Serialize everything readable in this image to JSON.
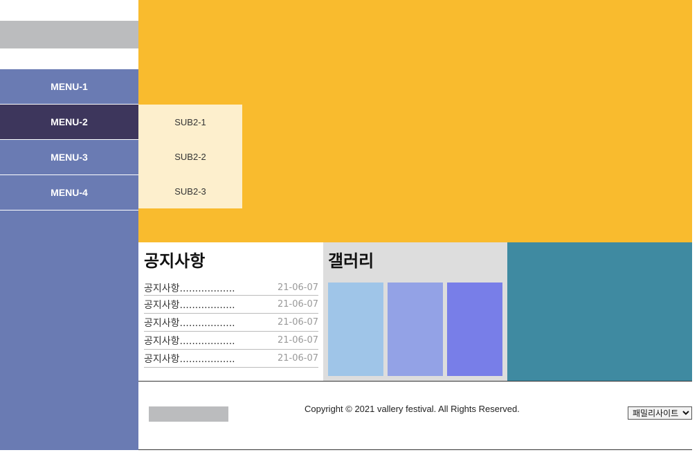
{
  "menu": {
    "items": [
      {
        "label": "MENU-1"
      },
      {
        "label": "MENU-2"
      },
      {
        "label": "MENU-3"
      },
      {
        "label": "MENU-4"
      }
    ],
    "active_index": 1,
    "submenu": [
      "SUB2-1",
      "SUB2-2",
      "SUB2-3"
    ]
  },
  "notice": {
    "title": "공지사항",
    "items": [
      {
        "title": "공지사항..................",
        "date": "21-06-07"
      },
      {
        "title": "공지사항..................",
        "date": "21-06-07"
      },
      {
        "title": "공지사항..................",
        "date": "21-06-07"
      },
      {
        "title": "공지사항..................",
        "date": "21-06-07"
      },
      {
        "title": "공지사항..................",
        "date": "21-06-07"
      }
    ]
  },
  "gallery": {
    "title": "갤러리",
    "item_colors": [
      "#9fc5e8",
      "#93a2e6",
      "#787ee8"
    ]
  },
  "colors": {
    "sidebar": "#6a7bb3",
    "menu_active": "#3d365c",
    "submenu_bg": "#fdefcd",
    "hero": "#f9bb2e",
    "gallery_bg": "#dddddd",
    "banner": "#3f8aa1",
    "logo_placeholder": "#bbbcbe"
  },
  "footer": {
    "copyright": "Copyright © 2021 vallery festival. All Rights Reserved.",
    "family_site": "패밀리사이트"
  }
}
